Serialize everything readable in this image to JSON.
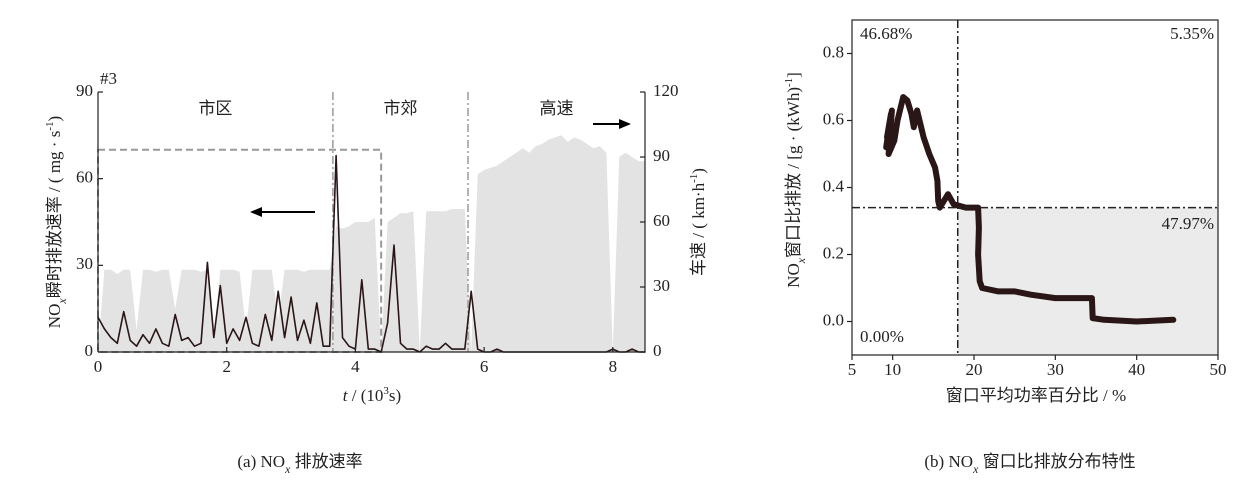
{
  "chart_data": [
    {
      "type": "line",
      "annotation": "#3",
      "x_label_parts": [
        "t",
        " / (10",
        "3",
        "s)"
      ],
      "y_label_parts": [
        "NO",
        "x",
        "瞬时排放速率 / ( mg · s",
        "-1",
        ")"
      ],
      "y2_label_parts": [
        "车速 / ( km·h",
        "-1",
        ")"
      ],
      "caption_parts": [
        "(a) NO",
        "x",
        " 排放速率"
      ],
      "region_labels": [
        "市区",
        "市郊",
        "高速"
      ],
      "region_bounds": [
        3.65,
        5.75
      ],
      "highlight_box": {
        "x": [
          0,
          4.4
        ],
        "y": [
          0,
          70
        ]
      },
      "xlim": [
        0,
        8.5
      ],
      "xticks": [
        0,
        2,
        4,
        6,
        8
      ],
      "ylim": [
        0,
        90
      ],
      "yticks": [
        0,
        30,
        60,
        90
      ],
      "y2lim": [
        0,
        120
      ],
      "y2ticks": [
        0,
        30,
        60,
        90,
        120
      ],
      "x": [
        0.0,
        0.1,
        0.2,
        0.3,
        0.4,
        0.5,
        0.6,
        0.7,
        0.8,
        0.9,
        1.0,
        1.1,
        1.2,
        1.3,
        1.4,
        1.5,
        1.6,
        1.7,
        1.8,
        1.9,
        2.0,
        2.1,
        2.2,
        2.3,
        2.4,
        2.5,
        2.6,
        2.7,
        2.8,
        2.9,
        3.0,
        3.1,
        3.2,
        3.3,
        3.4,
        3.5,
        3.6,
        3.7,
        3.8,
        3.9,
        4.0,
        4.1,
        4.2,
        4.3,
        4.4,
        4.5,
        4.6,
        4.7,
        4.8,
        4.9,
        5.0,
        5.1,
        5.2,
        5.3,
        5.4,
        5.5,
        5.6,
        5.7,
        5.8,
        5.9,
        6.0,
        6.1,
        6.2,
        6.3,
        6.4,
        6.5,
        6.6,
        6.7,
        6.8,
        6.9,
        7.0,
        7.1,
        7.2,
        7.3,
        7.4,
        7.5,
        7.6,
        7.7,
        7.8,
        7.9,
        8.0,
        8.1,
        8.2,
        8.3,
        8.4,
        8.5
      ],
      "series": [
        {
          "color": "#e3e3e3",
          "axis": "y2",
          "fill": true,
          "values": [
            0,
            38,
            38,
            36,
            38,
            38,
            10,
            38,
            38,
            37,
            38,
            38,
            20,
            38,
            38,
            38,
            37,
            38,
            5,
            38,
            38,
            38,
            37,
            10,
            38,
            38,
            38,
            38,
            15,
            38,
            38,
            38,
            37,
            38,
            38,
            38,
            38,
            58,
            57,
            58,
            60,
            60,
            60,
            62,
            0,
            60,
            62,
            64,
            64,
            65,
            0,
            65,
            65,
            65,
            65,
            66,
            66,
            66,
            0,
            82,
            84,
            85,
            86,
            88,
            90,
            92,
            94,
            92,
            95,
            96,
            98,
            99,
            100,
            97,
            99,
            98,
            96,
            94,
            95,
            92,
            0,
            90,
            92,
            90,
            88,
            88
          ]
        },
        {
          "color": "#2a1616",
          "values": [
            12,
            8,
            5,
            3,
            14,
            4,
            2,
            6,
            3,
            8,
            3,
            2,
            13,
            4,
            5,
            2,
            3,
            31,
            5,
            23,
            3,
            8,
            4,
            12,
            3,
            2,
            13,
            4,
            21,
            5,
            19,
            4,
            11,
            3,
            17,
            2,
            2,
            68,
            5,
            2,
            1,
            25,
            1,
            1,
            0,
            10,
            37,
            3,
            1,
            1,
            0,
            2,
            1,
            1,
            3,
            1,
            1,
            1,
            21,
            1,
            0,
            0,
            1,
            0,
            0,
            0,
            0,
            0,
            0,
            0,
            0,
            0,
            0,
            0,
            0,
            0,
            0,
            0,
            0,
            0,
            1,
            0,
            0,
            1,
            0,
            0
          ]
        }
      ]
    },
    {
      "type": "line",
      "x_label": "窗口平均功率百分比 / %",
      "y_label_parts": [
        "NO",
        "x",
        "窗口比排放 / [g · (kWh)",
        "-1",
        "]"
      ],
      "caption_parts": [
        "(b) NO",
        "x",
        " 窗口比排放分布特性"
      ],
      "quadrant_labels": [
        "46.68%",
        "5.35%",
        "47.97%",
        "0.00%"
      ],
      "vline": 18,
      "hline": 0.34,
      "xlim": [
        5,
        50
      ],
      "xticks": [
        5,
        10,
        20,
        30,
        40,
        50
      ],
      "ylim": [
        -0.1,
        0.9
      ],
      "yticks": [
        {
          "value": 0,
          "label": "0.0"
        },
        0.2,
        0.4,
        0.6,
        0.8
      ],
      "x": [
        9.2,
        9.8,
        9.3,
        9.9,
        9.5,
        10.2,
        10.6,
        11.3,
        11.8,
        12.3,
        12.6,
        13.0,
        13.8,
        14.5,
        15.2,
        15.5,
        15.6,
        15.8,
        16.3,
        16.8,
        17.5,
        19.0,
        20.5,
        20.6,
        20.5,
        20.7,
        21.0,
        23.0,
        25.0,
        27.0,
        30.0,
        32.0,
        34.5,
        34.6,
        36.0,
        40.0,
        44.5
      ],
      "series": [
        {
          "color": "#2a1616",
          "values": [
            0.52,
            0.62,
            0.55,
            0.63,
            0.5,
            0.54,
            0.6,
            0.67,
            0.66,
            0.62,
            0.58,
            0.63,
            0.55,
            0.5,
            0.46,
            0.42,
            0.36,
            0.34,
            0.36,
            0.38,
            0.35,
            0.34,
            0.34,
            0.28,
            0.2,
            0.12,
            0.1,
            0.09,
            0.09,
            0.08,
            0.07,
            0.07,
            0.07,
            0.01,
            0.005,
            0.0,
            0.005
          ]
        }
      ]
    }
  ]
}
